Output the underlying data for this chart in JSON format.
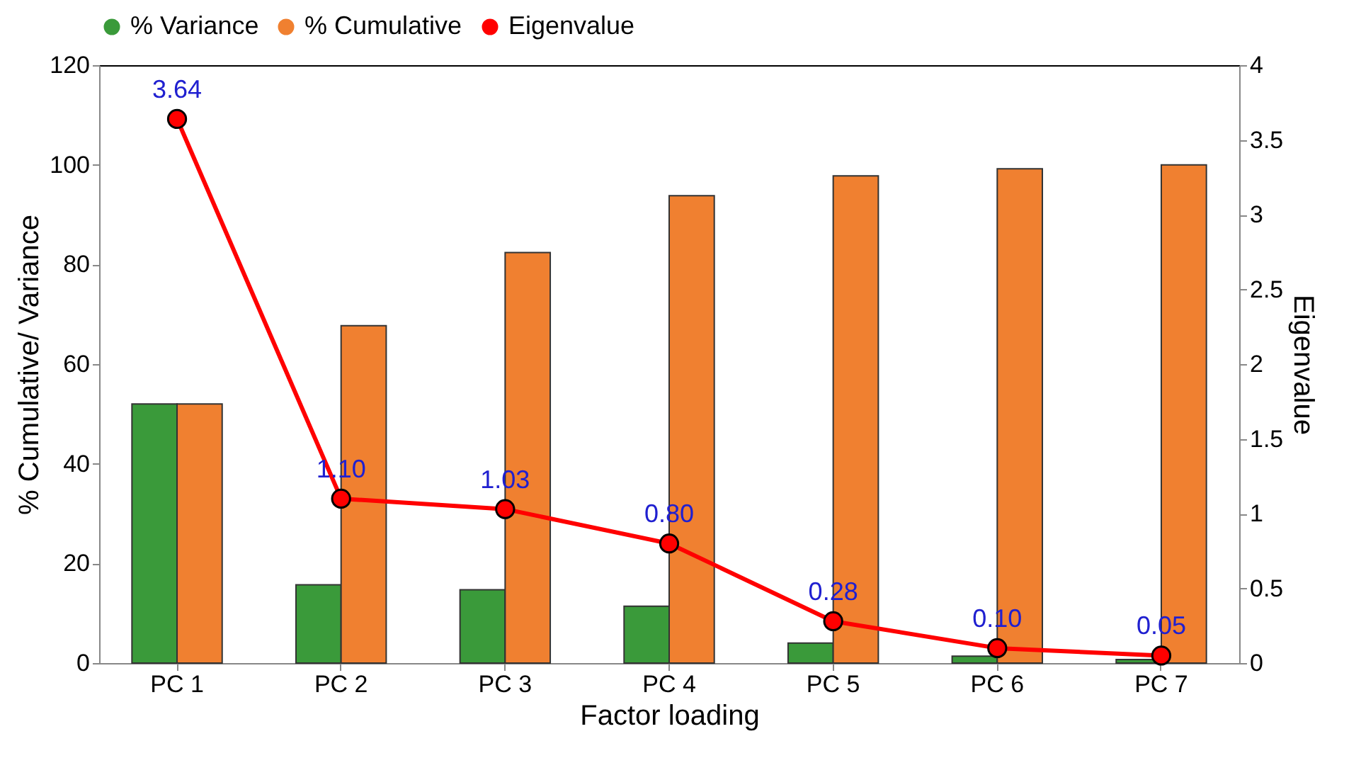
{
  "chart_data": {
    "type": "bar",
    "xlabel": "Factor loading",
    "ylabel": "% Cumulative/ Variance",
    "y2label": "Eigenvalue",
    "categories": [
      "PC 1",
      "PC 2",
      "PC 3",
      "PC 4",
      "PC 5",
      "PC 6",
      "PC 7"
    ],
    "series": [
      {
        "name": "% Variance",
        "color": "#3a9a3a",
        "values": [
          52,
          15.7,
          14.7,
          11.4,
          4,
          1.4,
          0.7
        ]
      },
      {
        "name": "% Cumulative",
        "color": "#f08030",
        "values": [
          52,
          67.7,
          82.4,
          93.8,
          97.8,
          99.2,
          100
        ]
      },
      {
        "name": "Eigenvalue",
        "type": "line",
        "axis": "y2",
        "color": "#ff0000",
        "marker": "circle",
        "line_style": "solid",
        "values": [
          3.64,
          1.1,
          1.03,
          0.8,
          0.28,
          0.1,
          0.05
        ],
        "value_labels": [
          "3.64",
          "1.10",
          "1.03",
          "0.80",
          "0.28",
          "0.10",
          "0.05"
        ]
      }
    ],
    "ylim": [
      0,
      120
    ],
    "yticks": [
      0,
      20,
      40,
      60,
      80,
      100,
      120
    ],
    "y2lim": [
      0,
      4
    ],
    "y2ticks": [
      0,
      0.5,
      1,
      1.5,
      2,
      2.5,
      3,
      3.5,
      4
    ],
    "grid": false,
    "legend": "top"
  }
}
